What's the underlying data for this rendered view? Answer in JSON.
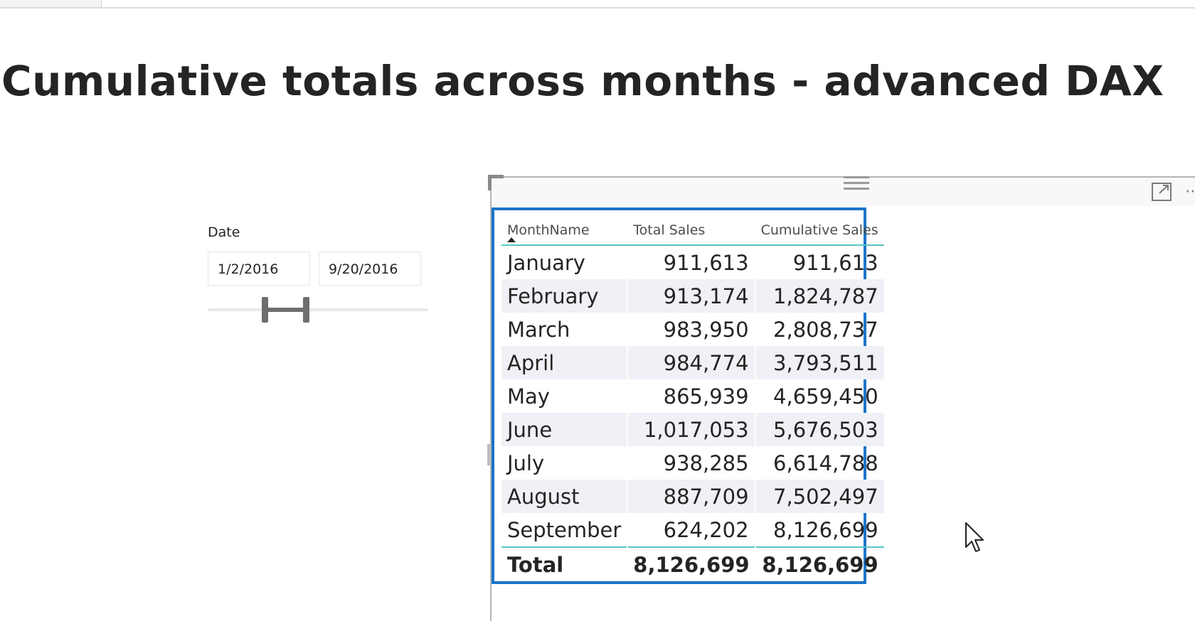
{
  "page": {
    "title": "Cumulative totals across months - advanced DAX"
  },
  "slicer": {
    "label": "Date",
    "start_date": "1/2/2016",
    "end_date": "9/20/2016"
  },
  "table": {
    "columns": [
      "MonthName",
      "Total Sales",
      "Cumulative Sales"
    ],
    "rows": [
      [
        "January",
        "911,613",
        "911,613"
      ],
      [
        "February",
        "913,174",
        "1,824,787"
      ],
      [
        "March",
        "983,950",
        "2,808,737"
      ],
      [
        "April",
        "984,774",
        "3,793,511"
      ],
      [
        "May",
        "865,939",
        "4,659,450"
      ],
      [
        "June",
        "1,017,053",
        "5,676,503"
      ],
      [
        "July",
        "938,285",
        "6,614,788"
      ],
      [
        "August",
        "887,709",
        "7,502,497"
      ],
      [
        "September",
        "624,202",
        "8,126,699"
      ]
    ],
    "total": [
      "Total",
      "8,126,699",
      "8,126,699"
    ],
    "sort_column": "MonthName",
    "sort_direction": "ascending"
  },
  "colors": {
    "selection_border": "#1b74c9",
    "header_rule": "#5bc5c2",
    "alt_row": "#eff1f6",
    "text": "#252423"
  },
  "icons": [
    "drag-grip-icon",
    "focus-mode-icon",
    "more-options-icon",
    "mouse-cursor-icon",
    "sort-ascending-icon"
  ]
}
